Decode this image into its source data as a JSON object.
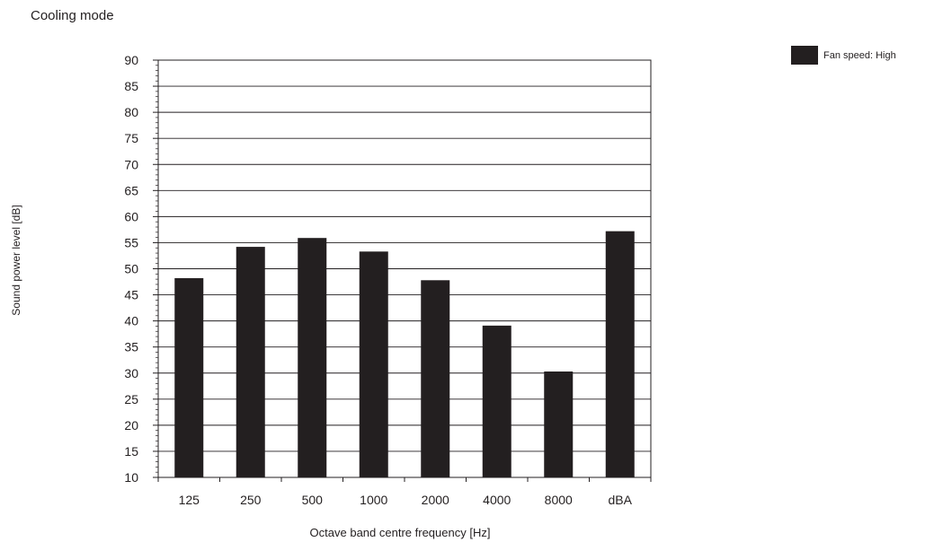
{
  "chart_data": {
    "type": "bar",
    "title": "Cooling mode",
    "xlabel": "Octave band centre frequency [Hz]",
    "ylabel": "Sound power level [dB]",
    "categories": [
      "125",
      "250",
      "500",
      "1000",
      "2000",
      "4000",
      "8000",
      "dBA"
    ],
    "series": [
      {
        "name": "Fan speed: High",
        "values": [
          48.2,
          54.2,
          55.9,
          53.3,
          47.8,
          39.1,
          30.3,
          57.2
        ],
        "color": "#231f20"
      }
    ],
    "ylim": [
      10,
      90
    ],
    "yticks": [
      "10",
      "15",
      "20",
      "25",
      "30",
      "35",
      "40",
      "45",
      "50",
      "55",
      "60",
      "65",
      "70",
      "75",
      "80",
      "85",
      "90"
    ],
    "grid": "horizontal",
    "legend_position": "top-right"
  }
}
